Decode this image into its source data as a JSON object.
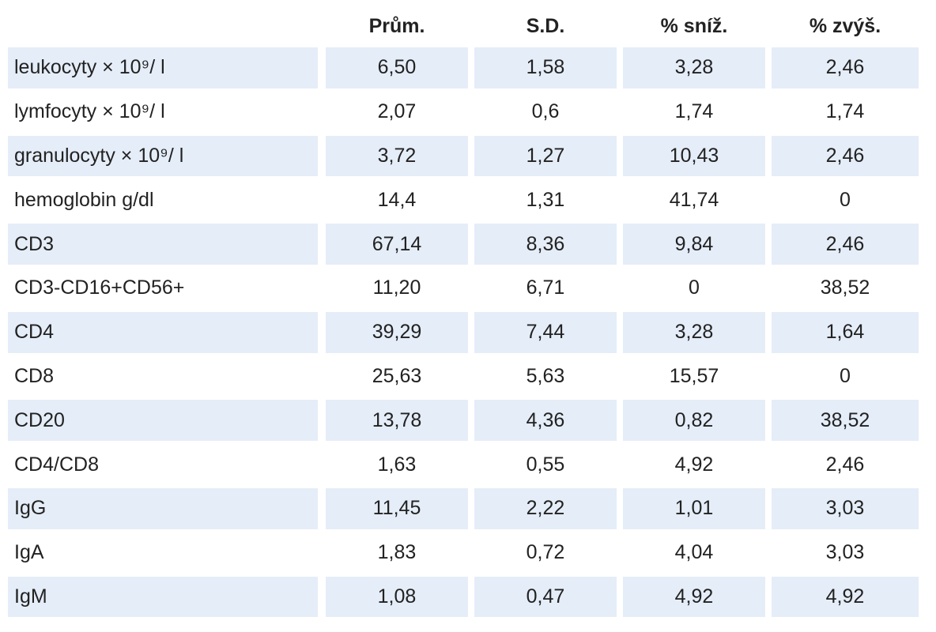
{
  "table": {
    "columns": [
      "Prům.",
      "S.D.",
      "% sníž.",
      "% zvýš."
    ],
    "rows": [
      [
        "leukocyty × 10⁹/ l",
        "6,50",
        "1,58",
        "3,28",
        "2,46"
      ],
      [
        "lymfocyty × 10⁹/ l",
        "2,07",
        "0,6",
        "1,74",
        "1,74"
      ],
      [
        "granulocyty × 10⁹/ l",
        "3,72",
        "1,27",
        "10,43",
        "2,46"
      ],
      [
        "hemoglobin g/dl",
        "14,4",
        "1,31",
        "41,74",
        "0"
      ],
      [
        "CD3",
        "67,14",
        "8,36",
        "9,84",
        "2,46"
      ],
      [
        "CD3-CD16+CD56+",
        "11,20",
        "6,71",
        "0",
        "38,52"
      ],
      [
        "CD4",
        "39,29",
        "7,44",
        "3,28",
        "1,64"
      ],
      [
        "CD8",
        "25,63",
        "5,63",
        "15,57",
        "0"
      ],
      [
        "CD20",
        "13,78",
        "4,36",
        "0,82",
        "38,52"
      ],
      [
        "CD4/CD8",
        "1,63",
        "0,55",
        "4,92",
        "2,46"
      ],
      [
        "IgG",
        "11,45",
        "2,22",
        "1,01",
        "3,03"
      ],
      [
        "IgA",
        "1,83",
        "0,72",
        "4,04",
        "3,03"
      ],
      [
        "IgM",
        "1,08",
        "0,47",
        "4,92",
        "4,92"
      ]
    ]
  }
}
